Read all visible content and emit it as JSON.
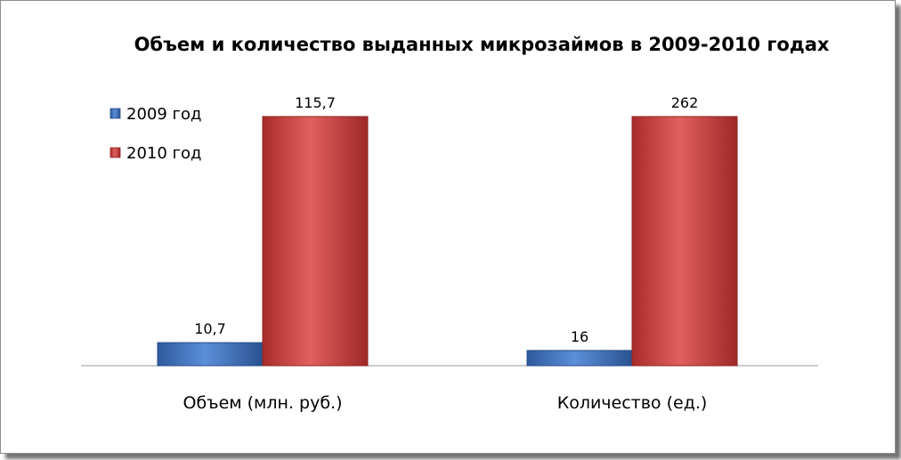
{
  "chart_data": {
    "type": "bar",
    "title": "Объем и количество выданных микрозаймов в 2009-2010 годах",
    "categories": [
      "Объем (млн. руб.)",
      "Количество (ед.)"
    ],
    "series": [
      {
        "name": "2009 год",
        "color": "#3f74c4",
        "values": [
          10.7,
          16
        ],
        "labels": [
          "10,7",
          "16"
        ]
      },
      {
        "name": "2010 год",
        "color": "#c73b3a",
        "values": [
          115.7,
          262
        ],
        "labels": [
          "115,7",
          "262"
        ]
      }
    ],
    "legend_position": "top-left",
    "grid": false,
    "note": "Each category group is scaled independently (values are shown with their own data labels)."
  }
}
